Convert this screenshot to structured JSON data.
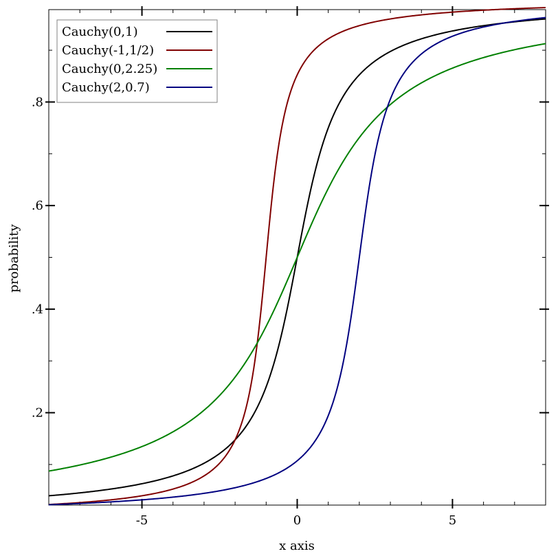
{
  "chart_data": {
    "type": "line",
    "xlabel": "x axis",
    "ylabel": "probability",
    "xlim": [
      -8,
      8
    ],
    "ylim": [
      0.0216,
      0.9784
    ],
    "x_ticks": [
      {
        "value": -5,
        "label": "-5"
      },
      {
        "value": 0,
        "label": "0"
      },
      {
        "value": 5,
        "label": "5"
      }
    ],
    "y_ticks": [
      {
        "value": 0.2,
        "label": ".2"
      },
      {
        "value": 0.4,
        "label": ".4"
      },
      {
        "value": 0.6,
        "label": ".6"
      },
      {
        "value": 0.8,
        "label": ".8"
      }
    ],
    "x_minor_step": 1,
    "y_minor_step": 0.1,
    "grid": false,
    "legend": "top-left",
    "series": [
      {
        "name": "Cauchy(0,1)",
        "color": "#000000",
        "location": 0,
        "scale": 1
      },
      {
        "name": "Cauchy(-1,1/2)",
        "color": "#800000",
        "location": -1,
        "scale": 0.5
      },
      {
        "name": "Cauchy(0,2.25)",
        "color": "#008000",
        "location": 0,
        "scale": 2.25
      },
      {
        "name": "Cauchy(2,0.7)",
        "color": "#000080",
        "location": 2,
        "scale": 0.7
      }
    ]
  }
}
